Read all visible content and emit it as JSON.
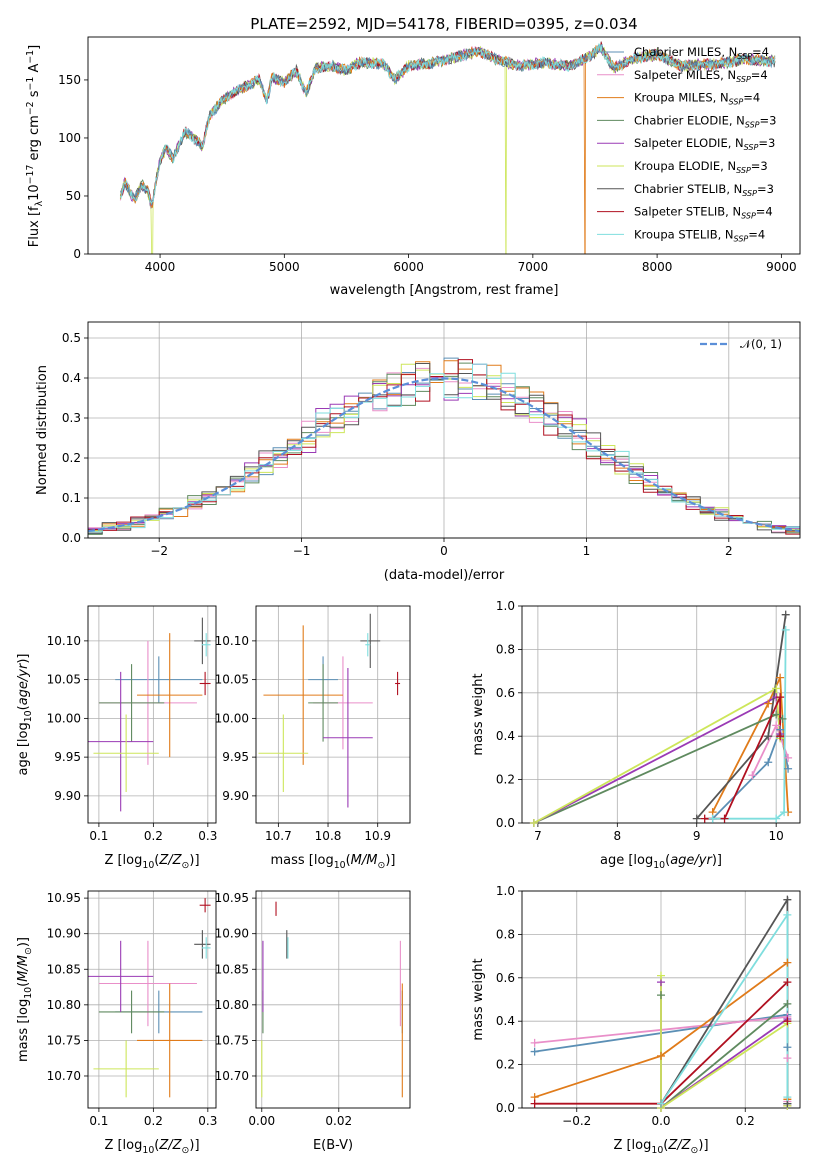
{
  "figure": {
    "title": "PLATE=2592, MJD=54178, FIBERID=0395, z=0.034"
  },
  "legend": {
    "entries": [
      {
        "label": "Chabrier MILES, N",
        "sub": "SSP",
        "post": "=4",
        "color": "#5b8fb5"
      },
      {
        "label": "Salpeter MILES, N",
        "sub": "SSP",
        "post": "=4",
        "color": "#e98fc9"
      },
      {
        "label": "Kroupa MILES, N",
        "sub": "SSP",
        "post": "=4",
        "color": "#e07b1a"
      },
      {
        "label": "Chabrier ELODIE, N",
        "sub": "SSP",
        "post": "=3",
        "color": "#5f8a5f"
      },
      {
        "label": "Salpeter ELODIE, N",
        "sub": "SSP",
        "post": "=3",
        "color": "#9a3ab5"
      },
      {
        "label": "Kroupa ELODIE, N",
        "sub": "SSP",
        "post": "=3",
        "color": "#cde65a"
      },
      {
        "label": "Chabrier STELIB, N",
        "sub": "SSP",
        "post": "=3",
        "color": "#555555"
      },
      {
        "label": "Salpeter STELIB, N",
        "sub": "SSP",
        "post": "=4",
        "color": "#b01020"
      },
      {
        "label": "Kroupa STELIB, N",
        "sub": "SSP",
        "post": "=4",
        "color": "#7fdede"
      }
    ],
    "normal_label": "𝒩(0, 1)"
  },
  "chart_data": [
    {
      "id": "spectrum",
      "type": "line",
      "xlabel": "wavelength [Angstrom, rest frame]",
      "ylabel": "Flux [f",
      "ylabel_full": "Flux [fλ10⁻¹⁷ erg cm⁻² s⁻¹ A⁻¹]",
      "xlim": [
        3420,
        9150
      ],
      "ylim": [
        0,
        187
      ],
      "xticks": [
        4000,
        5000,
        6000,
        7000,
        8000,
        9000
      ],
      "yticks": [
        0,
        50,
        100,
        150
      ],
      "anchors": [
        [
          3680,
          50
        ],
        [
          3720,
          62
        ],
        [
          3760,
          52
        ],
        [
          3800,
          48
        ],
        [
          3850,
          60
        ],
        [
          3900,
          55
        ],
        [
          3935,
          40
        ],
        [
          3970,
          65
        ],
        [
          4000,
          80
        ],
        [
          4050,
          92
        ],
        [
          4100,
          82
        ],
        [
          4200,
          105
        ],
        [
          4300,
          98
        ],
        [
          4340,
          92
        ],
        [
          4400,
          120
        ],
        [
          4500,
          132
        ],
        [
          4600,
          140
        ],
        [
          4700,
          145
        ],
        [
          4800,
          150
        ],
        [
          4861,
          132
        ],
        [
          4900,
          152
        ],
        [
          5000,
          148
        ],
        [
          5100,
          158
        ],
        [
          5175,
          138
        ],
        [
          5250,
          160
        ],
        [
          5400,
          162
        ],
        [
          5500,
          158
        ],
        [
          5600,
          165
        ],
        [
          5800,
          164
        ],
        [
          5890,
          150
        ],
        [
          6000,
          162
        ],
        [
          6200,
          165
        ],
        [
          6400,
          170
        ],
        [
          6563,
          175
        ],
        [
          6700,
          168
        ],
        [
          6900,
          162
        ],
        [
          7100,
          165
        ],
        [
          7300,
          162
        ],
        [
          7450,
          170
        ],
        [
          7550,
          178
        ],
        [
          7650,
          160
        ],
        [
          7800,
          168
        ],
        [
          8000,
          172
        ],
        [
          8200,
          162
        ],
        [
          8500,
          164
        ],
        [
          8700,
          168
        ],
        [
          8950,
          166
        ]
      ],
      "cutoffs": [
        {
          "series": 5,
          "x": 3935
        },
        {
          "series": 5,
          "x": 6780
        },
        {
          "series": 2,
          "x": 7420
        }
      ]
    },
    {
      "id": "residuals",
      "type": "histogram",
      "xlabel": "(data-model)/error",
      "ylabel": "Normed distribution",
      "xlim": [
        -2.5,
        2.5
      ],
      "ylim": [
        0,
        0.54
      ],
      "xticks": [
        -2,
        -1,
        0,
        1,
        2
      ],
      "yticks": [
        0.0,
        0.1,
        0.2,
        0.3,
        0.4,
        0.5
      ],
      "bin_width": 0.1,
      "overlay": "standard normal pdf, dashed"
    },
    {
      "id": "age_vs_Z",
      "type": "errorbar",
      "xlabel": "Z [log",
      "xlabel_full": "Z [log10(Z/Z⊙)]",
      "ylabel": "age  [log",
      "ylabel_full": "age  [log10(age/yr)]",
      "xlim": [
        0.08,
        0.315
      ],
      "ylim": [
        9.865,
        10.145
      ],
      "xticks": [
        0.1,
        0.2,
        0.3
      ],
      "yticks": [
        9.9,
        9.95,
        10.0,
        10.05,
        10.1
      ],
      "points": [
        {
          "s": 0,
          "x": 0.21,
          "xerr": 0.08,
          "y": 10.05,
          "yerr": 0.03
        },
        {
          "s": 1,
          "x": 0.19,
          "xerr": 0.09,
          "y": 10.02,
          "yerr": 0.08
        },
        {
          "s": 2,
          "x": 0.23,
          "xerr": 0.06,
          "y": 10.03,
          "yerr": 0.08
        },
        {
          "s": 3,
          "x": 0.16,
          "xerr": 0.06,
          "y": 10.02,
          "yerr": 0.05
        },
        {
          "s": 4,
          "x": 0.14,
          "xerr": 0.06,
          "y": 9.97,
          "yerr": 0.09
        },
        {
          "s": 5,
          "x": 0.15,
          "xerr": 0.06,
          "y": 9.955,
          "yerr": 0.05
        },
        {
          "s": 6,
          "x": 0.29,
          "xerr": 0.015,
          "y": 10.1,
          "yerr": 0.03
        },
        {
          "s": 7,
          "x": 0.295,
          "xerr": 0.01,
          "y": 10.045,
          "yerr": 0.015
        },
        {
          "s": 8,
          "x": 0.297,
          "xerr": 0.008,
          "y": 10.095,
          "yerr": 0.015
        }
      ]
    },
    {
      "id": "age_vs_mass",
      "type": "errorbar",
      "xlabel": "mass [log",
      "xlabel_full": "mass [log10(M/M⊙)]",
      "ylabel": "",
      "xlim": [
        10.655,
        10.965
      ],
      "ylim": [
        9.865,
        10.145
      ],
      "xticks": [
        10.7,
        10.8,
        10.9
      ],
      "yticks": [
        9.9,
        9.95,
        10.0,
        10.05,
        10.1
      ],
      "points": [
        {
          "s": 0,
          "x": 10.79,
          "xerr": 0.03,
          "y": 10.05,
          "yerr": 0.03
        },
        {
          "s": 1,
          "x": 10.83,
          "xerr": 0.06,
          "y": 10.02,
          "yerr": 0.06
        },
        {
          "s": 2,
          "x": 10.75,
          "xerr": 0.08,
          "y": 10.03,
          "yerr": 0.09
        },
        {
          "s": 3,
          "x": 10.79,
          "xerr": 0.03,
          "y": 10.02,
          "yerr": 0.05
        },
        {
          "s": 4,
          "x": 10.84,
          "xerr": 0.05,
          "y": 9.975,
          "yerr": 0.09
        },
        {
          "s": 5,
          "x": 10.71,
          "xerr": 0.05,
          "y": 9.955,
          "yerr": 0.05
        },
        {
          "s": 6,
          "x": 10.885,
          "xerr": 0.02,
          "y": 10.1,
          "yerr": 0.035
        },
        {
          "s": 7,
          "x": 10.94,
          "xerr": 0.005,
          "y": 10.045,
          "yerr": 0.015
        },
        {
          "s": 8,
          "x": 10.88,
          "xerr": 0.005,
          "y": 10.095,
          "yerr": 0.015
        }
      ]
    },
    {
      "id": "massweight_vs_age",
      "type": "line",
      "xlabel": "age  [log",
      "xlabel_full": "age  [log10(age/yr)]",
      "ylabel": "mass weight",
      "xlim": [
        6.8,
        10.3
      ],
      "ylim": [
        0,
        1.0
      ],
      "xticks": [
        7,
        8,
        9,
        10
      ],
      "yticks": [
        0.0,
        0.2,
        0.4,
        0.6,
        0.8,
        1.0
      ],
      "series": [
        {
          "s": 0,
          "points": [
            [
              9.2,
              0.02
            ],
            [
              9.9,
              0.28
            ],
            [
              10.05,
              0.43
            ],
            [
              10.15,
              0.25
            ]
          ]
        },
        {
          "s": 1,
          "points": [
            [
              9.7,
              0.22
            ],
            [
              10.0,
              0.45
            ],
            [
              10.05,
              0.4
            ],
            [
              10.15,
              0.3
            ]
          ]
        },
        {
          "s": 2,
          "points": [
            [
              9.2,
              0.05
            ],
            [
              9.9,
              0.55
            ],
            [
              10.05,
              0.67
            ],
            [
              10.15,
              0.05
            ]
          ]
        },
        {
          "s": 3,
          "points": [
            [
              6.95,
              0.0
            ],
            [
              10.0,
              0.5
            ],
            [
              10.08,
              0.48
            ]
          ]
        },
        {
          "s": 4,
          "points": [
            [
              6.95,
              0.0
            ],
            [
              10.0,
              0.58
            ],
            [
              10.05,
              0.41
            ]
          ]
        },
        {
          "s": 5,
          "points": [
            [
              6.95,
              0.0
            ],
            [
              10.0,
              0.62
            ],
            [
              10.05,
              0.39
            ]
          ]
        },
        {
          "s": 6,
          "points": [
            [
              9.0,
              0.02
            ],
            [
              9.9,
              0.4
            ],
            [
              10.12,
              0.96
            ]
          ]
        },
        {
          "s": 7,
          "points": [
            [
              9.1,
              0.02
            ],
            [
              9.35,
              0.02
            ],
            [
              10.05,
              0.58
            ],
            [
              10.05,
              0.4
            ]
          ]
        },
        {
          "s": 8,
          "points": [
            [
              9.2,
              0.02
            ],
            [
              10.0,
              0.02
            ],
            [
              10.1,
              0.05
            ],
            [
              10.12,
              0.89
            ]
          ]
        }
      ]
    },
    {
      "id": "mass_vs_Z",
      "type": "errorbar",
      "xlabel": "Z [log",
      "xlabel_full": "Z [log10(Z/Z⊙)]",
      "ylabel": "mass [log",
      "ylabel_full": "mass [log10(M/M⊙)]",
      "xlim": [
        0.08,
        0.315
      ],
      "ylim": [
        10.655,
        10.96
      ],
      "xticks": [
        0.1,
        0.2,
        0.3
      ],
      "yticks": [
        10.7,
        10.75,
        10.8,
        10.85,
        10.9,
        10.95
      ],
      "points": [
        {
          "s": 0,
          "x": 0.21,
          "xerr": 0.08,
          "y": 10.79,
          "yerr": 0.03
        },
        {
          "s": 1,
          "x": 0.19,
          "xerr": 0.09,
          "y": 10.83,
          "yerr": 0.06
        },
        {
          "s": 2,
          "x": 0.23,
          "xerr": 0.06,
          "y": 10.75,
          "yerr": 0.08
        },
        {
          "s": 3,
          "x": 0.16,
          "xerr": 0.06,
          "y": 10.79,
          "yerr": 0.03
        },
        {
          "s": 4,
          "x": 0.14,
          "xerr": 0.06,
          "y": 10.84,
          "yerr": 0.05
        },
        {
          "s": 5,
          "x": 0.15,
          "xerr": 0.06,
          "y": 10.71,
          "yerr": 0.04
        },
        {
          "s": 6,
          "x": 0.29,
          "xerr": 0.015,
          "y": 10.885,
          "yerr": 0.02
        },
        {
          "s": 7,
          "x": 0.295,
          "xerr": 0.01,
          "y": 10.94,
          "yerr": 0.01
        },
        {
          "s": 8,
          "x": 0.297,
          "xerr": 0.008,
          "y": 10.88,
          "yerr": 0.015
        }
      ]
    },
    {
      "id": "mass_vs_ebv",
      "type": "errorbar",
      "xlabel": "E(B-V)",
      "ylabel": "",
      "xlim": [
        -0.0015,
        0.0385
      ],
      "ylim": [
        10.655,
        10.96
      ],
      "xticks": [
        0.0,
        0.02
      ],
      "xtick_labels": [
        "0.00",
        "0.02"
      ],
      "yticks": [
        10.7,
        10.75,
        10.8,
        10.85,
        10.9,
        10.95
      ],
      "points": [
        {
          "s": 0,
          "x": 0.0365,
          "xerr": 0.0,
          "y": 10.79,
          "yerr": 0.03
        },
        {
          "s": 1,
          "x": 0.036,
          "xerr": 0.0,
          "y": 10.83,
          "yerr": 0.06
        },
        {
          "s": 2,
          "x": 0.0365,
          "xerr": 0.0,
          "y": 10.75,
          "yerr": 0.08
        },
        {
          "s": 3,
          "x": 0.0003,
          "xerr": 0.0,
          "y": 10.79,
          "yerr": 0.03
        },
        {
          "s": 4,
          "x": 0.0003,
          "xerr": 0.0,
          "y": 10.84,
          "yerr": 0.05
        },
        {
          "s": 5,
          "x": 0.0,
          "xerr": 0.0,
          "y": 10.71,
          "yerr": 0.04
        },
        {
          "s": 6,
          "x": 0.0065,
          "xerr": 0.0,
          "y": 10.885,
          "yerr": 0.02
        },
        {
          "s": 7,
          "x": 0.0037,
          "xerr": 0.0,
          "y": 10.935,
          "yerr": 0.01
        },
        {
          "s": 8,
          "x": 0.0068,
          "xerr": 0.0,
          "y": 10.88,
          "yerr": 0.015
        }
      ]
    },
    {
      "id": "massweight_vs_Z",
      "type": "line",
      "xlabel": "Z [log",
      "xlabel_full": "Z [log10(Z/Z⊙)]",
      "ylabel": "mass weight",
      "xlim": [
        -0.33,
        0.33
      ],
      "ylim": [
        0,
        1.0
      ],
      "xticks": [
        -0.2,
        0.0,
        0.2
      ],
      "xtick_labels": [
        "−0.2",
        "0.0",
        "0.2"
      ],
      "yticks": [
        0.0,
        0.2,
        0.4,
        0.6,
        0.8,
        1.0
      ],
      "series": [
        {
          "s": 0,
          "points": [
            [
              -0.3,
              0.26
            ],
            [
              0.3,
              0.43
            ],
            [
              0.3,
              0.28
            ],
            [
              0.3,
              0.02
            ]
          ]
        },
        {
          "s": 1,
          "points": [
            [
              -0.3,
              0.3
            ],
            [
              0.3,
              0.42
            ],
            [
              0.3,
              0.23
            ],
            [
              0.3,
              0.03
            ]
          ]
        },
        {
          "s": 2,
          "points": [
            [
              -0.3,
              0.05
            ],
            [
              0.0,
              0.24
            ],
            [
              0.3,
              0.67
            ],
            [
              0.3,
              0.04
            ]
          ]
        },
        {
          "s": 3,
          "points": [
            [
              0.0,
              0.52
            ],
            [
              0.0,
              0.0
            ],
            [
              0.3,
              0.48
            ],
            [
              0.3,
              0.02
            ]
          ]
        },
        {
          "s": 4,
          "points": [
            [
              0.0,
              0.58
            ],
            [
              0.0,
              0.0
            ],
            [
              0.3,
              0.41
            ],
            [
              0.3,
              0.01
            ]
          ]
        },
        {
          "s": 5,
          "points": [
            [
              0.0,
              0.61
            ],
            [
              0.0,
              0.0
            ],
            [
              0.3,
              0.39
            ],
            [
              0.3,
              0.01
            ]
          ]
        },
        {
          "s": 6,
          "points": [
            [
              0.0,
              0.02
            ],
            [
              0.3,
              0.96
            ],
            [
              0.3,
              0.02
            ]
          ]
        },
        {
          "s": 7,
          "points": [
            [
              -0.3,
              0.02
            ],
            [
              0.0,
              0.02
            ],
            [
              0.3,
              0.58
            ],
            [
              0.3,
              0.4
            ]
          ]
        },
        {
          "s": 8,
          "points": [
            [
              0.0,
              0.02
            ],
            [
              0.3,
              0.89
            ],
            [
              0.3,
              0.05
            ]
          ]
        }
      ]
    }
  ]
}
